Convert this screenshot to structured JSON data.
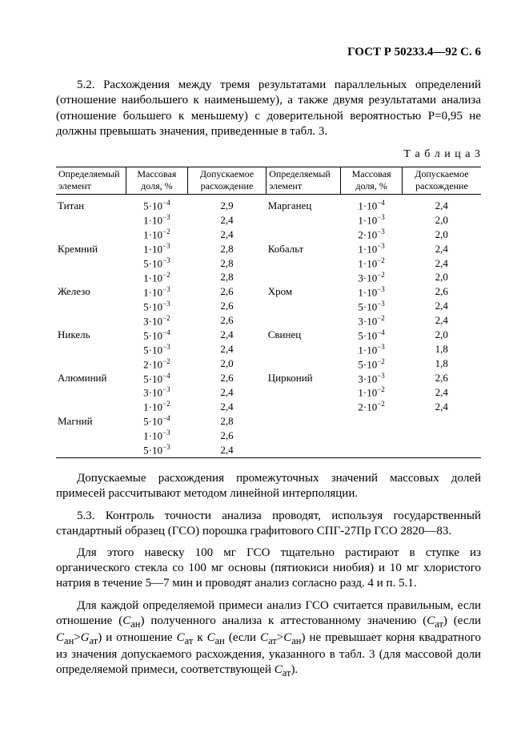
{
  "header": "ГОСТ Р 50233.4—92 С. 6",
  "para1": "5.2. Расхождения между тремя результатами параллельных определений (отношение наибольшего к наименьшему), а также двумя результатами анализа (отношение большего к меньшему) с доверительной вероятностью P=0,95 не должны превышать значения, приведенные в табл. 3.",
  "table_caption": "Т а б л и ц а 3",
  "table": {
    "headers": [
      "Определяемый элемент",
      "Массовая доля, %",
      "Допускаемое расхождение",
      "Определяемый элемент",
      "Массовая доля, %",
      "Допускаемое расхождение"
    ],
    "rows": [
      {
        "el": "Титан",
        "m": "5·10",
        "e": "−4",
        "d": "2,9",
        "el2": "Марганец",
        "m2": "1·10",
        "e2": "−4",
        "d2": "2,4"
      },
      {
        "el": "",
        "m": "1·10",
        "e": "−3",
        "d": "2,4",
        "el2": "",
        "m2": "1·10",
        "e2": "−3",
        "d2": "2,0"
      },
      {
        "el": "",
        "m": "1·10",
        "e": "−2",
        "d": "2,4",
        "el2": "",
        "m2": "2·10",
        "e2": "−3",
        "d2": "2,0"
      },
      {
        "el": "Кремний",
        "m": "1·10",
        "e": "−3",
        "d": "2,8",
        "el2": "Кобальт",
        "m2": "1·10",
        "e2": "−3",
        "d2": "2,4"
      },
      {
        "el": "",
        "m": "5·10",
        "e": "−3",
        "d": "2,8",
        "el2": "",
        "m2": "1·10",
        "e2": "−2",
        "d2": "2,4"
      },
      {
        "el": "",
        "m": "1·10",
        "e": "−2",
        "d": "2,8",
        "el2": "",
        "m2": "3·10",
        "e2": "−2",
        "d2": "2,0"
      },
      {
        "el": "Железо",
        "m": "1·10",
        "e": "−3",
        "d": "2,6",
        "el2": "Хром",
        "m2": "1·10",
        "e2": "−3",
        "d2": "2,6"
      },
      {
        "el": "",
        "m": "5·10",
        "e": "−3",
        "d": "2,6",
        "el2": "",
        "m2": "5·10",
        "e2": "−3",
        "d2": "2,4"
      },
      {
        "el": "",
        "m": "3·10",
        "e": "−2",
        "d": "2,6",
        "el2": "",
        "m2": "3·10",
        "e2": "−2",
        "d2": "2,4"
      },
      {
        "el": "Никель",
        "m": "5·10",
        "e": "−4",
        "d": "2,4",
        "el2": "Свинец",
        "m2": "5·10",
        "e2": "−4",
        "d2": "2,0"
      },
      {
        "el": "",
        "m": "5·10",
        "e": "−3",
        "d": "2,4",
        "el2": "",
        "m2": "1·10",
        "e2": "−3",
        "d2": "1,8"
      },
      {
        "el": "",
        "m": "2·10",
        "e": "−2",
        "d": "2,0",
        "el2": "",
        "m2": "5·10",
        "e2": "−2",
        "d2": "1,8"
      },
      {
        "el": "Алюминий",
        "m": "5·10",
        "e": "−4",
        "d": "2,6",
        "el2": "Цирконий",
        "m2": "3·10",
        "e2": "−3",
        "d2": "2,6"
      },
      {
        "el": "",
        "m": "3·10",
        "e": "−3",
        "d": "2,4",
        "el2": "",
        "m2": "1·10",
        "e2": "−2",
        "d2": "2,4"
      },
      {
        "el": "",
        "m": "1·10",
        "e": "−2",
        "d": "2,4",
        "el2": "",
        "m2": "2·10",
        "e2": "−2",
        "d2": "2,4"
      },
      {
        "el": "Магний",
        "m": "5·10",
        "e": "−4",
        "d": "2,8",
        "el2": "",
        "m2": "",
        "e2": "",
        "d2": ""
      },
      {
        "el": "",
        "m": "1·10",
        "e": "−3",
        "d": "2,6",
        "el2": "",
        "m2": "",
        "e2": "",
        "d2": ""
      },
      {
        "el": "",
        "m": "5·10",
        "e": "−3",
        "d": "2,4",
        "el2": "",
        "m2": "",
        "e2": "",
        "d2": ""
      }
    ]
  },
  "para2": "Допускаемые расхождения промежуточных значений массовых долей примесей рассчитывают методом линейной интерполяции.",
  "para3": "5.3. Контроль точности анализа проводят, используя государственный стандартный образец (ГСО) порошка графитового СПГ-27Пр ГСО 2820—83.",
  "para4": "Для этого навеску 100 мг ГСО тщательно растирают в ступке из органического стекла со 100 мг основы (пятиокиси ниобия) и 10 мг хлористого натрия в течение 5—7 мин и проводят анализ согласно разд. 4 и п. 5.1.",
  "para5_a": "Для каждой определяемой примеси анализ ГСО считается правильным, если отношение (",
  "para5_c1": "С",
  "para5_s1": "ан",
  "para5_b": ") полученного анализа к аттестованному значению (",
  "para5_c2": "С",
  "para5_s2": "ат",
  "para5_c": ") (если ",
  "para5_c3": "С",
  "para5_s3": "ан",
  "para5_gt": ">",
  "para5_c4": "G",
  "para5_s4": "ат",
  "para5_d": ") и отношение ",
  "para5_c5": "С",
  "para5_s5": "ат",
  "para5_e": " к ",
  "para5_c6": "С",
  "para5_s6": "ан",
  "para5_f": " (если ",
  "para5_c7": "С",
  "para5_s7": "ат",
  "para5_c8": "С",
  "para5_s8": "ан",
  "para5_g": ") не превышает корня квадратного из значения допускаемого расхождения, указанного в табл. 3 (для массовой доли определяемой примеси, соответствующей ",
  "para5_c9": "С",
  "para5_s9": "ат",
  "para5_h": ")."
}
